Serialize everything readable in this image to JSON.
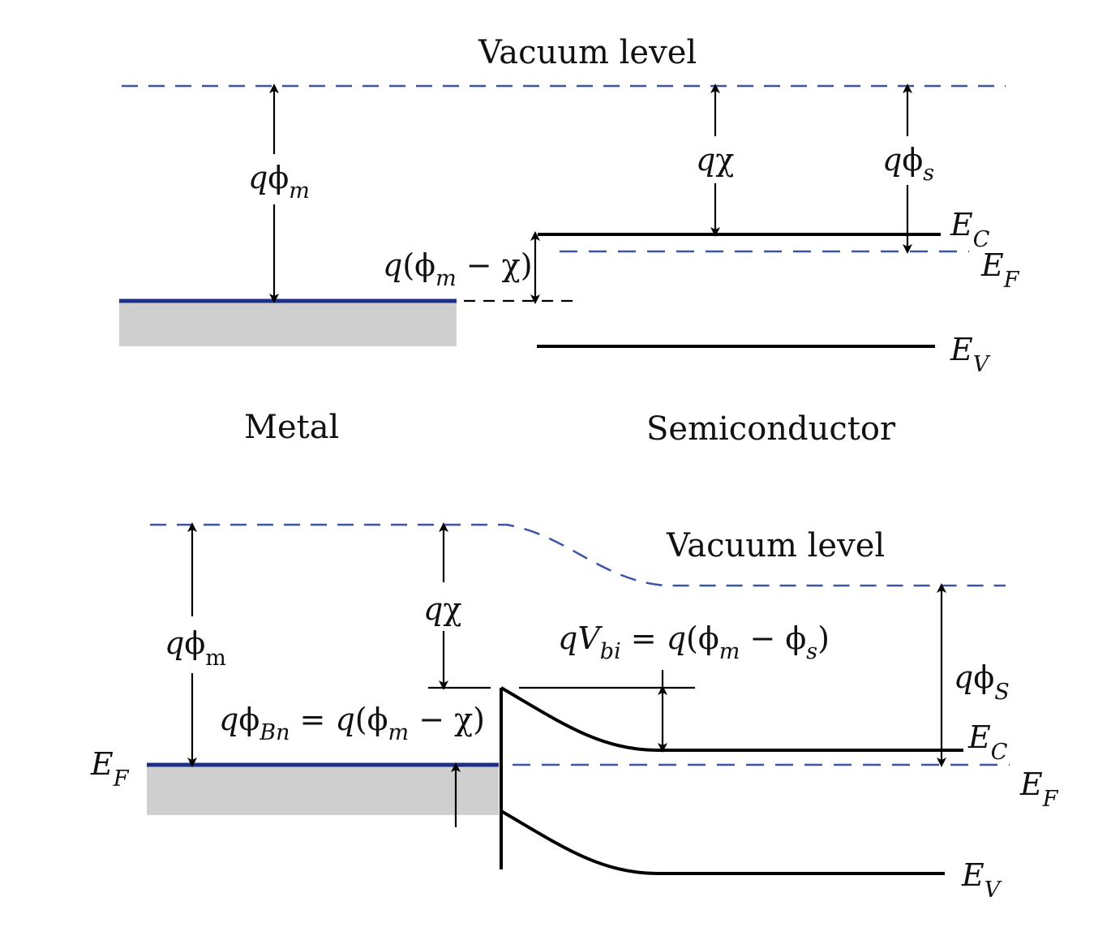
{
  "top": {
    "vacuum_label": "Vacuum level",
    "metal_label": "Metal",
    "semiconductor_label": "Semiconductor",
    "q": "q",
    "phi": "ϕ",
    "chi": "χ",
    "m": "m",
    "s": "s",
    "open_paren": "(",
    "close_paren": ")",
    "minus": " − ",
    "E": "E",
    "C": "C",
    "F": "F",
    "V": "V"
  },
  "bottom": {
    "vacuum_label": "Vacuum level",
    "q": "q",
    "phi": "ϕ",
    "chi": "χ",
    "m_upright": "m",
    "m": "m",
    "S": "S",
    "s": "s",
    "Bn": "Bn",
    "V": "V",
    "bi": "bi",
    "equals": " = ",
    "minus": " − ",
    "open_paren": "(",
    "close_paren": ")",
    "E": "E",
    "C": "C",
    "F": "F",
    "Vsub": "V"
  },
  "colors": {
    "vacuum_line": "#3b54a6",
    "metal_fermi": "#1d2f86",
    "metal_fill": "#cfcfcf",
    "band_line": "#000000"
  }
}
